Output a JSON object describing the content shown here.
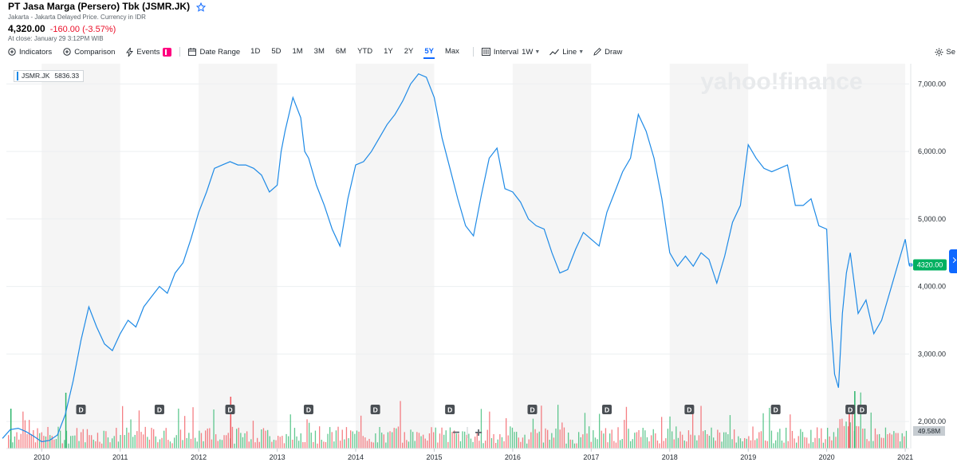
{
  "quote": {
    "title": "PT Jasa Marga (Persero) Tbk (JSMR.JK)",
    "subtitle": "Jakarta - Jakarta Delayed Price. Currency in IDR",
    "price": "4,320.00",
    "change": "-160.00 (-3.57%)",
    "close_note": "At close: January 29 3:12PM WIB"
  },
  "toolbar": {
    "indicators": "Indicators",
    "comparison": "Comparison",
    "events": "Events",
    "date_range": "Date Range",
    "ranges": [
      "1D",
      "5D",
      "1M",
      "3M",
      "6M",
      "YTD",
      "1Y",
      "2Y",
      "5Y",
      "Max"
    ],
    "active_range": "5Y",
    "interval_label": "Interval",
    "interval_value": "1W",
    "chart_type": "Line",
    "draw": "Draw",
    "settings": "Se"
  },
  "legend": {
    "symbol": "JSMR.JK",
    "value": "5836.33"
  },
  "colors": {
    "line": "#1e8ae6",
    "up": "#2cb56b",
    "down": "#f2545b",
    "accent": "#0f69ff",
    "last_price_bg": "#00b060",
    "band": "#f5f5f5"
  },
  "watermark": "yahoo!finance",
  "volume_label": "49.58M",
  "last_price_label": "4320.00",
  "zoom": {
    "minus": "−",
    "plus": "+"
  },
  "dividend_marker": "D",
  "chart_data": {
    "type": "line",
    "series": [
      {
        "name": "JSMR.JK",
        "x": [
          2009.5,
          2009.6,
          2009.7,
          2009.8,
          2009.9,
          2010.0,
          2010.1,
          2010.2,
          2010.3,
          2010.4,
          2010.5,
          2010.6,
          2010.7,
          2010.8,
          2010.9,
          2011.0,
          2011.1,
          2011.2,
          2011.3,
          2011.4,
          2011.5,
          2011.6,
          2011.7,
          2011.8,
          2011.9,
          2012.0,
          2012.1,
          2012.2,
          2012.3,
          2012.4,
          2012.5,
          2012.6,
          2012.7,
          2012.8,
          2012.9,
          2013.0,
          2013.05,
          2013.1,
          2013.2,
          2013.3,
          2013.35,
          2013.4,
          2013.5,
          2013.6,
          2013.7,
          2013.8,
          2013.9,
          2014.0,
          2014.1,
          2014.2,
          2014.3,
          2014.4,
          2014.5,
          2014.6,
          2014.7,
          2014.8,
          2014.9,
          2015.0,
          2015.1,
          2015.2,
          2015.3,
          2015.4,
          2015.5,
          2015.6,
          2015.7,
          2015.8,
          2015.9,
          2016.0,
          2016.1,
          2016.2,
          2016.3,
          2016.4,
          2016.5,
          2016.6,
          2016.7,
          2016.8,
          2016.9,
          2017.0,
          2017.1,
          2017.2,
          2017.3,
          2017.4,
          2017.5,
          2017.6,
          2017.7,
          2017.8,
          2017.9,
          2018.0,
          2018.1,
          2018.2,
          2018.3,
          2018.4,
          2018.5,
          2018.6,
          2018.7,
          2018.8,
          2018.9,
          2019.0,
          2019.1,
          2019.2,
          2019.3,
          2019.4,
          2019.5,
          2019.6,
          2019.7,
          2019.8,
          2019.9,
          2020.0,
          2020.05,
          2020.1,
          2020.15,
          2020.2,
          2020.25,
          2020.3,
          2020.4,
          2020.5,
          2020.6,
          2020.7,
          2020.8,
          2020.9,
          2021.0,
          2021.05
        ],
        "y": [
          1750,
          1880,
          1900,
          1850,
          1780,
          1700,
          1720,
          1800,
          2100,
          2600,
          3200,
          3700,
          3400,
          3150,
          3050,
          3300,
          3500,
          3400,
          3700,
          3850,
          4000,
          3900,
          4200,
          4350,
          4700,
          5100,
          5400,
          5750,
          5800,
          5850,
          5800,
          5800,
          5750,
          5650,
          5400,
          5500,
          6000,
          6300,
          6800,
          6500,
          6000,
          5900,
          5500,
          5200,
          4850,
          4600,
          5300,
          5800,
          5850,
          6000,
          6200,
          6400,
          6550,
          6750,
          7000,
          7150,
          7100,
          6800,
          6200,
          5750,
          5300,
          4900,
          4750,
          5350,
          5900,
          6050,
          5450,
          5400,
          5250,
          5000,
          4900,
          4850,
          4500,
          4200,
          4250,
          4550,
          4800,
          4700,
          4600,
          5100,
          5400,
          5700,
          5900,
          6550,
          6300,
          5900,
          5300,
          4500,
          4300,
          4450,
          4300,
          4500,
          4400,
          4050,
          4450,
          4950,
          5200,
          6100,
          5900,
          5750,
          5700,
          5750,
          5800,
          5200,
          5200,
          5300,
          4900,
          4850,
          3500,
          2700,
          2500,
          3600,
          4200,
          4500,
          3600,
          3800,
          3300,
          3500,
          3900,
          4300,
          4700,
          4320
        ]
      }
    ],
    "volume_label": "49.58M",
    "xticks": [
      "2010",
      "2011",
      "2012",
      "2013",
      "2014",
      "2015",
      "2016",
      "2017",
      "2018",
      "2019",
      "2020",
      "2021"
    ],
    "yticks": [
      "2,000.00",
      "3,000.00",
      "4,000.00",
      "5,000.00",
      "6,000.00",
      "7,000.00"
    ],
    "ylim": [
      1600,
      7300
    ],
    "xlim": [
      2009.55,
      2021.05
    ],
    "dividend_years": [
      2010.5,
      2011.5,
      2012.4,
      2013.4,
      2014.25,
      2015.2,
      2016.25,
      2017.2,
      2018.25,
      2019.35,
      2020.3,
      2020.45
    ],
    "grid": true
  }
}
